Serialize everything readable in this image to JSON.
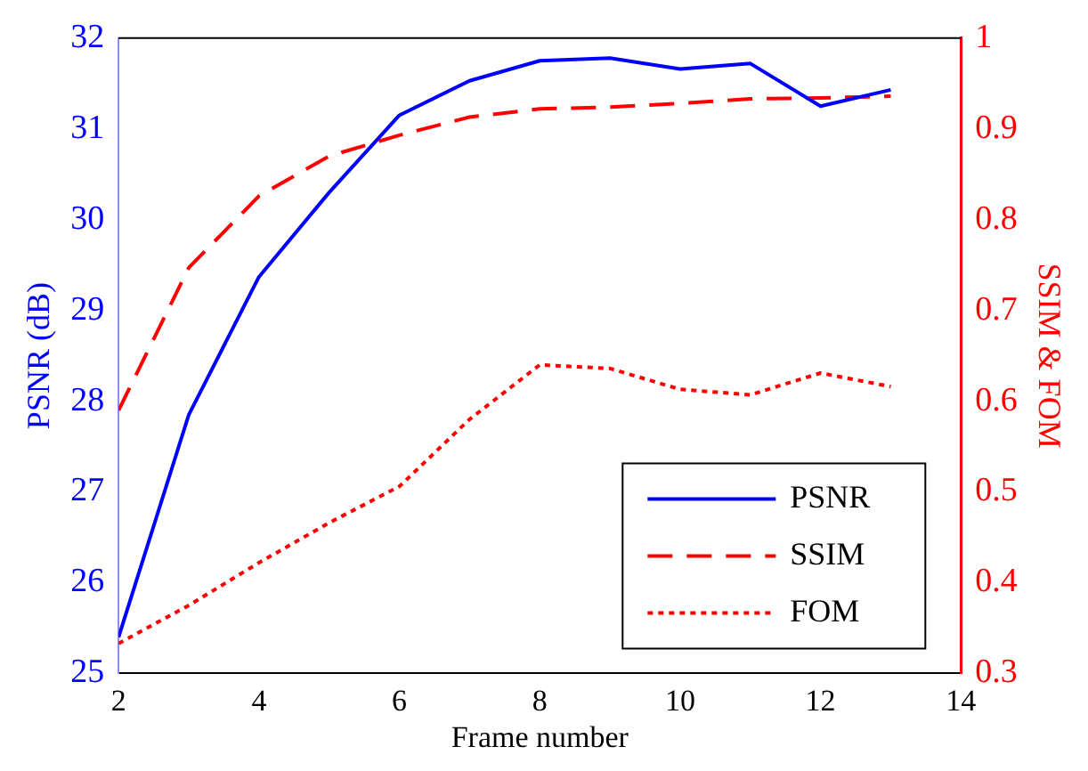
{
  "chart_data": {
    "type": "line",
    "xlabel": "Frame number",
    "ylabel": "PSNR (dB)",
    "y2label": "SSIM & FOM",
    "x": [
      2,
      3,
      4,
      5,
      6,
      7,
      8,
      9,
      10,
      11,
      12,
      13
    ],
    "xlim": [
      2,
      14
    ],
    "xticks": [
      2,
      4,
      6,
      8,
      10,
      12,
      14
    ],
    "ylim": [
      25,
      32
    ],
    "yticks": [
      25,
      26,
      27,
      28,
      29,
      30,
      31,
      32
    ],
    "y2lim": [
      0.3,
      1
    ],
    "y2ticks": [
      0.3,
      0.4,
      0.5,
      0.6,
      0.7,
      0.8,
      0.9,
      1
    ],
    "legend": "bottom right",
    "grid": false,
    "series": [
      {
        "name": "PSNR",
        "color": "#0000ff",
        "line_style": "solid",
        "values": [
          25.4,
          27.85,
          29.37,
          30.3,
          31.15,
          31.53,
          31.75,
          31.78,
          31.66,
          31.72,
          31.25,
          31.43
        ]
      },
      {
        "name": "SSIM",
        "color": "#ff0000",
        "line_style": "dashed",
        "axis": "y2",
        "values": [
          0.59,
          0.747,
          0.826,
          0.87,
          0.893,
          0.913,
          0.922,
          0.924,
          0.928,
          0.933,
          0.934,
          0.936
        ]
      },
      {
        "name": "FOM",
        "color": "#ff0000",
        "line_style": "dotted",
        "axis": "y2",
        "values": [
          0.333,
          0.375,
          0.422,
          0.466,
          0.506,
          0.58,
          0.64,
          0.636,
          0.613,
          0.607,
          0.631,
          0.616
        ]
      }
    ]
  }
}
